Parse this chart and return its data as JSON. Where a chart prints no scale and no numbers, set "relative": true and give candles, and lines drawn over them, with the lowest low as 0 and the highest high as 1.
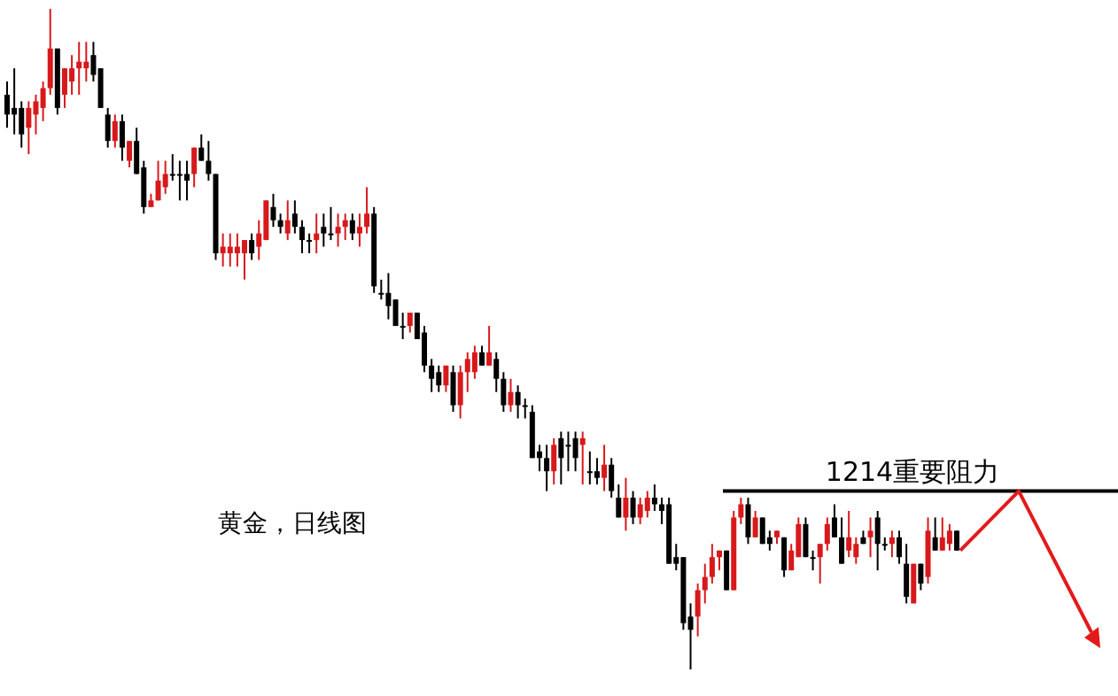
{
  "chart_data": {
    "type": "candlestick",
    "relative": true,
    "annotations": [
      "黄金，日线图"
    ],
    "ref_lines": [
      {
        "axis": "y",
        "value": 0.27,
        "label": "1214重要阻力",
        "color": "#000000"
      }
    ],
    "categories": [
      null,
      null,
      null,
      null,
      null,
      null,
      null,
      null,
      null,
      null,
      null,
      null,
      null,
      null,
      null,
      null,
      null,
      null,
      null,
      null,
      null,
      null,
      null,
      null,
      null,
      null,
      null,
      null,
      null,
      null,
      null,
      null,
      null,
      null,
      null,
      null,
      null,
      null,
      null,
      null,
      null,
      null,
      null,
      null,
      null,
      null,
      null,
      null,
      null,
      null,
      null,
      null,
      null,
      null,
      null,
      null,
      null,
      null,
      null,
      null,
      null,
      null,
      null,
      null,
      null,
      null,
      null,
      null,
      null,
      null,
      null,
      null,
      null,
      null,
      null,
      null,
      null,
      null,
      null,
      null,
      null,
      null,
      null,
      null,
      null,
      null,
      null,
      null,
      null,
      null,
      null,
      null,
      null,
      null,
      null,
      null,
      null,
      null,
      null,
      null,
      null,
      null,
      null,
      null,
      null,
      null,
      null,
      null,
      null,
      null,
      null,
      null,
      null,
      null,
      null,
      null,
      null,
      null,
      null,
      null,
      null,
      null,
      null,
      null,
      null,
      null,
      null,
      null,
      null,
      null,
      null,
      null,
      null
    ],
    "ohlc": [
      [
        0.87,
        0.89,
        0.82,
        0.84
      ],
      [
        0.85,
        0.91,
        0.81,
        0.84
      ],
      [
        0.85,
        0.86,
        0.79,
        0.81
      ],
      [
        0.82,
        0.86,
        0.78,
        0.85
      ],
      [
        0.84,
        0.87,
        0.81,
        0.86
      ],
      [
        0.85,
        0.89,
        0.83,
        0.88
      ],
      [
        0.88,
        1.0,
        0.87,
        0.94
      ],
      [
        0.94,
        0.94,
        0.84,
        0.85
      ],
      [
        0.87,
        0.91,
        0.85,
        0.91
      ],
      [
        0.89,
        0.93,
        0.87,
        0.91
      ],
      [
        0.91,
        0.95,
        0.87,
        0.92
      ],
      [
        0.91,
        0.95,
        0.89,
        0.92
      ],
      [
        0.93,
        0.95,
        0.89,
        0.9
      ],
      [
        0.91,
        0.91,
        0.85,
        0.85
      ],
      [
        0.84,
        0.85,
        0.79,
        0.8
      ],
      [
        0.8,
        0.84,
        0.79,
        0.83
      ],
      [
        0.83,
        0.84,
        0.77,
        0.79
      ],
      [
        0.77,
        0.8,
        0.76,
        0.8
      ],
      [
        0.8,
        0.82,
        0.75,
        0.75
      ],
      [
        0.76,
        0.77,
        0.69,
        0.7
      ],
      [
        0.7,
        0.72,
        0.7,
        0.71
      ],
      [
        0.71,
        0.77,
        0.71,
        0.74
      ],
      [
        0.73,
        0.77,
        0.72,
        0.75
      ],
      [
        0.75,
        0.78,
        0.74,
        0.75
      ],
      [
        0.75,
        0.77,
        0.71,
        0.75
      ],
      [
        0.75,
        0.77,
        0.71,
        0.74
      ],
      [
        0.75,
        0.79,
        0.73,
        0.79
      ],
      [
        0.79,
        0.81,
        0.77,
        0.77
      ],
      [
        0.77,
        0.8,
        0.74,
        0.75
      ],
      [
        0.75,
        0.75,
        0.62,
        0.63
      ],
      [
        0.63,
        0.66,
        0.61,
        0.64
      ],
      [
        0.63,
        0.66,
        0.61,
        0.64
      ],
      [
        0.63,
        0.66,
        0.61,
        0.64
      ],
      [
        0.63,
        0.65,
        0.59,
        0.65
      ],
      [
        0.65,
        0.66,
        0.62,
        0.63
      ],
      [
        0.64,
        0.68,
        0.62,
        0.66
      ],
      [
        0.65,
        0.71,
        0.65,
        0.71
      ],
      [
        0.7,
        0.72,
        0.67,
        0.68
      ],
      [
        0.68,
        0.69,
        0.66,
        0.67
      ],
      [
        0.66,
        0.71,
        0.65,
        0.68
      ],
      [
        0.69,
        0.71,
        0.66,
        0.67
      ],
      [
        0.67,
        0.68,
        0.63,
        0.65
      ],
      [
        0.65,
        0.66,
        0.63,
        0.65
      ],
      [
        0.65,
        0.69,
        0.63,
        0.66
      ],
      [
        0.67,
        0.69,
        0.64,
        0.66
      ],
      [
        0.66,
        0.7,
        0.65,
        0.66
      ],
      [
        0.66,
        0.69,
        0.64,
        0.67
      ],
      [
        0.67,
        0.69,
        0.65,
        0.68
      ],
      [
        0.68,
        0.69,
        0.65,
        0.66
      ],
      [
        0.66,
        0.69,
        0.64,
        0.67
      ],
      [
        0.67,
        0.73,
        0.66,
        0.69
      ],
      [
        0.69,
        0.7,
        0.57,
        0.58
      ],
      [
        0.57,
        0.59,
        0.56,
        0.57
      ],
      [
        0.57,
        0.6,
        0.53,
        0.55
      ],
      [
        0.56,
        0.56,
        0.52,
        0.52
      ],
      [
        0.52,
        0.54,
        0.5,
        0.52
      ],
      [
        0.52,
        0.54,
        0.51,
        0.54
      ],
      [
        0.54,
        0.54,
        0.5,
        0.5
      ],
      [
        0.51,
        0.52,
        0.45,
        0.46
      ],
      [
        0.46,
        0.47,
        0.42,
        0.44
      ],
      [
        0.45,
        0.46,
        0.42,
        0.43
      ],
      [
        0.43,
        0.46,
        0.42,
        0.46
      ],
      [
        0.45,
        0.46,
        0.39,
        0.4
      ],
      [
        0.4,
        0.46,
        0.38,
        0.45
      ],
      [
        0.45,
        0.48,
        0.42,
        0.47
      ],
      [
        0.45,
        0.49,
        0.44,
        0.48
      ],
      [
        0.48,
        0.49,
        0.46,
        0.46
      ],
      [
        0.46,
        0.52,
        0.46,
        0.48
      ],
      [
        0.47,
        0.48,
        0.42,
        0.44
      ],
      [
        0.44,
        0.45,
        0.39,
        0.4
      ],
      [
        0.4,
        0.44,
        0.39,
        0.42
      ],
      [
        0.42,
        0.43,
        0.38,
        0.4
      ],
      [
        0.4,
        0.41,
        0.38,
        0.4
      ],
      [
        0.39,
        0.4,
        0.32,
        0.32
      ],
      [
        0.33,
        0.34,
        0.3,
        0.32
      ],
      [
        0.32,
        0.34,
        0.27,
        0.3
      ],
      [
        0.3,
        0.35,
        0.28,
        0.34
      ],
      [
        0.35,
        0.36,
        0.28,
        0.32
      ],
      [
        0.34,
        0.36,
        0.3,
        0.34
      ],
      [
        0.35,
        0.36,
        0.3,
        0.32
      ],
      [
        0.34,
        0.36,
        0.28,
        0.35
      ],
      [
        0.3,
        0.33,
        0.28,
        0.3
      ],
      [
        0.3,
        0.32,
        0.28,
        0.29
      ],
      [
        0.29,
        0.34,
        0.27,
        0.31
      ],
      [
        0.31,
        0.32,
        0.26,
        0.27
      ],
      [
        0.26,
        0.28,
        0.23,
        0.23
      ],
      [
        0.23,
        0.29,
        0.21,
        0.26
      ],
      [
        0.26,
        0.27,
        0.22,
        0.23
      ],
      [
        0.23,
        0.26,
        0.22,
        0.25
      ],
      [
        0.24,
        0.27,
        0.23,
        0.26
      ],
      [
        0.26,
        0.28,
        0.24,
        0.25
      ],
      [
        0.25,
        0.26,
        0.22,
        0.24
      ],
      [
        0.25,
        0.26,
        0.16,
        0.16
      ],
      [
        0.17,
        0.19,
        0.15,
        0.16
      ],
      [
        0.17,
        0.17,
        0.06,
        0.07
      ],
      [
        0.08,
        0.1,
        0.0,
        0.06
      ],
      [
        0.08,
        0.13,
        0.05,
        0.12
      ],
      [
        0.12,
        0.16,
        0.1,
        0.14
      ],
      [
        0.14,
        0.19,
        0.13,
        0.17
      ],
      [
        0.17,
        0.18,
        0.15,
        0.18
      ],
      [
        0.18,
        0.18,
        0.12,
        0.12
      ],
      [
        0.12,
        0.24,
        0.12,
        0.23
      ],
      [
        0.23,
        0.26,
        0.22,
        0.25
      ],
      [
        0.25,
        0.26,
        0.19,
        0.2
      ],
      [
        0.2,
        0.24,
        0.2,
        0.23
      ],
      [
        0.23,
        0.23,
        0.19,
        0.19
      ],
      [
        0.2,
        0.21,
        0.18,
        0.19
      ],
      [
        0.2,
        0.21,
        0.19,
        0.21
      ],
      [
        0.2,
        0.2,
        0.14,
        0.15
      ],
      [
        0.15,
        0.19,
        0.15,
        0.18
      ],
      [
        0.17,
        0.23,
        0.17,
        0.22
      ],
      [
        0.22,
        0.23,
        0.17,
        0.17
      ],
      [
        0.17,
        0.18,
        0.15,
        0.17
      ],
      [
        0.17,
        0.19,
        0.13,
        0.19
      ],
      [
        0.19,
        0.23,
        0.18,
        0.22
      ],
      [
        0.23,
        0.25,
        0.2,
        0.2
      ],
      [
        0.2,
        0.23,
        0.16,
        0.16
      ],
      [
        0.18,
        0.24,
        0.17,
        0.2
      ],
      [
        0.17,
        0.2,
        0.16,
        0.19
      ],
      [
        0.2,
        0.21,
        0.19,
        0.19
      ],
      [
        0.2,
        0.23,
        0.17,
        0.21
      ],
      [
        0.23,
        0.24,
        0.15,
        0.19
      ],
      [
        0.19,
        0.2,
        0.18,
        0.19
      ],
      [
        0.19,
        0.21,
        0.17,
        0.2
      ],
      [
        0.2,
        0.21,
        0.16,
        0.17
      ],
      [
        0.16,
        0.19,
        0.1,
        0.11
      ],
      [
        0.1,
        0.16,
        0.1,
        0.16
      ],
      [
        0.16,
        0.16,
        0.12,
        0.13
      ],
      [
        0.14,
        0.23,
        0.13,
        0.21
      ],
      [
        0.2,
        0.23,
        0.18,
        0.18
      ],
      [
        0.18,
        0.23,
        0.18,
        0.2
      ],
      [
        0.19,
        0.22,
        0.18,
        0.21
      ],
      [
        0.21,
        0.21,
        0.18,
        0.18
      ]
    ]
  }
}
